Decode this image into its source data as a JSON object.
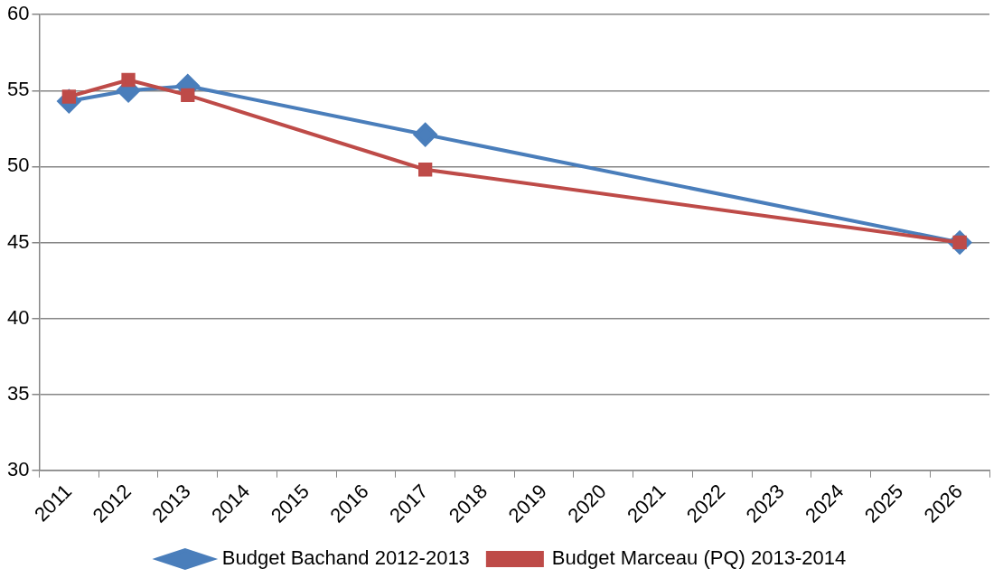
{
  "chart_data": {
    "type": "line",
    "categories": [
      "2011",
      "2012",
      "2013",
      "2014",
      "2015",
      "2016",
      "2017",
      "2018",
      "2019",
      "2020",
      "2021",
      "2022",
      "2023",
      "2024",
      "2025",
      "2026"
    ],
    "series": [
      {
        "name": "Budget Bachand 2012-2013",
        "color": "#4a7ebb",
        "marker": "diamond",
        "values": [
          54.3,
          55.0,
          55.3,
          null,
          null,
          null,
          52.1,
          null,
          null,
          null,
          null,
          null,
          null,
          null,
          null,
          45.0
        ]
      },
      {
        "name": "Budget Marceau (PQ) 2013-2014",
        "color": "#be4b48",
        "marker": "square",
        "values": [
          54.6,
          55.7,
          54.7,
          null,
          null,
          null,
          49.8,
          null,
          null,
          null,
          null,
          null,
          null,
          null,
          null,
          45.0
        ]
      }
    ],
    "ylim": [
      30,
      60
    ],
    "yticks": [
      30,
      35,
      40,
      45,
      50,
      55,
      60
    ],
    "grid": "y",
    "legend": "bottom",
    "line_style": "solid"
  }
}
